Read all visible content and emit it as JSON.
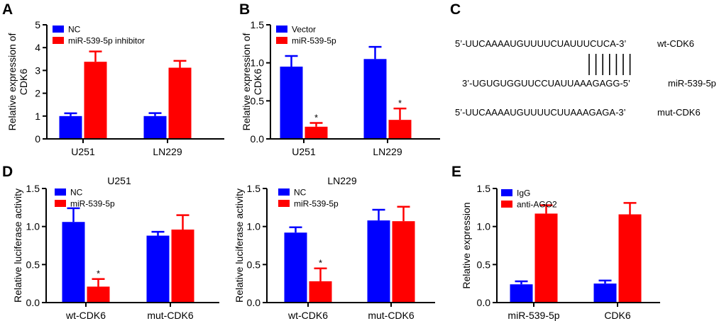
{
  "figure": {
    "panels": [
      "A",
      "B",
      "C",
      "D",
      "E"
    ],
    "colors": {
      "blue": "#0000ff",
      "red": "#ff0000",
      "axis": "#000000"
    }
  },
  "chart_data": [
    {
      "id": "A",
      "type": "bar",
      "title": "",
      "categories": [
        "U251",
        "LN229"
      ],
      "series": [
        {
          "name": "NC",
          "color": "#0000ff",
          "values": [
            1.0,
            1.0
          ],
          "errors": [
            0.12,
            0.13
          ],
          "marks": [
            "",
            ""
          ]
        },
        {
          "name": "miR-539-5p inhibitor",
          "color": "#ff0000",
          "values": [
            3.38,
            3.12
          ],
          "errors": [
            0.45,
            0.3
          ],
          "marks": [
            "",
            ""
          ]
        }
      ],
      "xlabel": "",
      "ylabel": "Relative expression of CDK6",
      "ylim": [
        0,
        5
      ],
      "yticks": [
        0,
        1,
        2,
        3,
        4,
        5
      ],
      "ytick_labels": [
        "0",
        "1",
        "2",
        "3",
        "4",
        "5"
      ],
      "legend": "top-left"
    },
    {
      "id": "B",
      "type": "bar",
      "title": "",
      "categories": [
        "U251",
        "LN229"
      ],
      "series": [
        {
          "name": "Vector",
          "color": "#0000ff",
          "values": [
            0.95,
            1.05
          ],
          "errors": [
            0.14,
            0.16
          ],
          "marks": [
            "",
            ""
          ]
        },
        {
          "name": "miR-539-5p",
          "color": "#ff0000",
          "values": [
            0.16,
            0.25
          ],
          "errors": [
            0.05,
            0.15
          ],
          "marks": [
            "*",
            "*"
          ]
        }
      ],
      "xlabel": "",
      "ylabel": "Relative expression of CDK6",
      "ylim": [
        0,
        1.5
      ],
      "yticks": [
        0,
        0.5,
        1.0,
        1.5
      ],
      "ytick_labels": [
        "0.0",
        "0.5",
        "1.0",
        "1.5"
      ],
      "legend": "top-left"
    },
    {
      "id": "D1",
      "type": "bar",
      "title": "U251",
      "categories": [
        "wt-CDK6",
        "mut-CDK6"
      ],
      "series": [
        {
          "name": "NC",
          "color": "#0000ff",
          "values": [
            1.06,
            0.88
          ],
          "errors": [
            0.18,
            0.05
          ],
          "marks": [
            "",
            ""
          ]
        },
        {
          "name": "miR-539-5p",
          "color": "#ff0000",
          "values": [
            0.21,
            0.96
          ],
          "errors": [
            0.1,
            0.19
          ],
          "marks": [
            "*",
            ""
          ]
        }
      ],
      "xlabel": "",
      "ylabel": "Relative luciferase activity",
      "ylim": [
        0,
        1.5
      ],
      "yticks": [
        0,
        0.5,
        1.0,
        1.5
      ],
      "ytick_labels": [
        "0.0",
        "0.5",
        "1.0",
        "1.5"
      ],
      "legend": "top-left"
    },
    {
      "id": "D2",
      "type": "bar",
      "title": "LN229",
      "categories": [
        "wt-CDK6",
        "mut-CDK6"
      ],
      "series": [
        {
          "name": "NC",
          "color": "#0000ff",
          "values": [
            0.92,
            1.08
          ],
          "errors": [
            0.07,
            0.14
          ],
          "marks": [
            "",
            ""
          ]
        },
        {
          "name": "miR-539-5p",
          "color": "#ff0000",
          "values": [
            0.28,
            1.07
          ],
          "errors": [
            0.17,
            0.19
          ],
          "marks": [
            "*",
            ""
          ]
        }
      ],
      "xlabel": "",
      "ylabel": "Relative luciferase activity",
      "ylim": [
        0,
        1.5
      ],
      "yticks": [
        0,
        0.5,
        1.0,
        1.5
      ],
      "ytick_labels": [
        "0.0",
        "0.5",
        "1.0",
        "1.5"
      ],
      "legend": "top-left"
    },
    {
      "id": "E",
      "type": "bar",
      "title": "",
      "categories": [
        "miR-539-5p",
        "CDK6"
      ],
      "series": [
        {
          "name": "IgG",
          "color": "#0000ff",
          "values": [
            0.24,
            0.25
          ],
          "errors": [
            0.04,
            0.04
          ],
          "marks": [
            "",
            ""
          ]
        },
        {
          "name": "anti-AGO2",
          "color": "#ff0000",
          "values": [
            1.17,
            1.16
          ],
          "errors": [
            0.11,
            0.15
          ],
          "marks": [
            "",
            ""
          ]
        }
      ],
      "xlabel": "",
      "ylabel": "Relative expression",
      "ylim": [
        0,
        1.5
      ],
      "yticks": [
        0,
        0.5,
        1.0,
        1.5
      ],
      "ytick_labels": [
        "0.0",
        "0.5",
        "1.0",
        "1.5"
      ],
      "legend": "top-left"
    }
  ],
  "sequences": [
    {
      "seq": "5’-UUCAAAAUGUUUUCUAUUUCUCA-3’",
      "label": "wt-CDK6"
    },
    {
      "seq": "3’-UGUGUGGUUCCUAUUAAAGAGG-5’",
      "label": "miR-539-5p"
    },
    {
      "seq": "5’-UUCAAAAUGUUUUCUUAAAGAGA-3’",
      "label": "mut-CDK6"
    }
  ],
  "binding_lines": 7
}
